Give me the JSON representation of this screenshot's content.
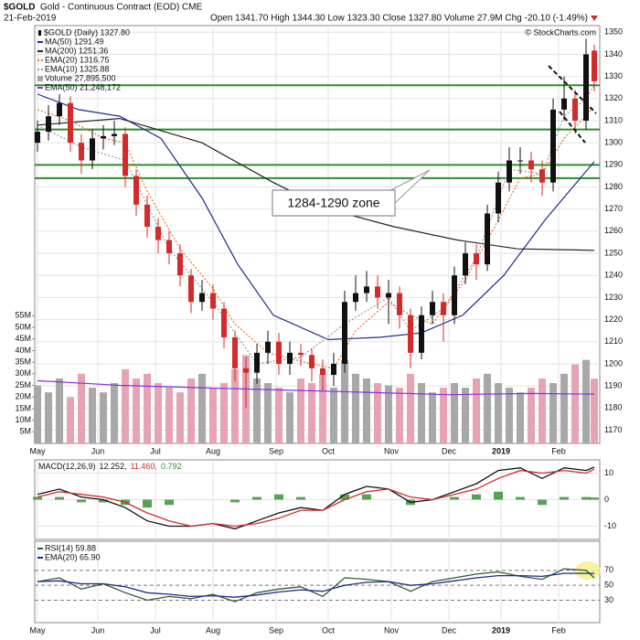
{
  "header": {
    "symbol": "$GOLD",
    "description": "Gold - Continuous Contract (EOD) CME",
    "date": "21-Feb-2019",
    "quote": "Open 1341.70  High 1344.30  Low 1323.30  Close 1327.80  Volume 27.9M  Chg -20.10 (-1.49%)",
    "watermark": "© StockCharts.com"
  },
  "chart_data": [
    {
      "type": "candlestick",
      "name": "$GOLD (Daily) 1327.80",
      "annotation": "1284-1290 zone",
      "x": [
        0,
        4,
        8,
        12,
        16,
        20,
        24,
        28,
        32,
        36,
        40,
        44,
        48,
        52,
        56,
        60,
        64,
        68,
        72,
        76,
        80,
        84,
        88,
        92,
        96,
        100,
        104,
        108,
        112,
        116,
        120,
        124,
        128,
        132,
        136,
        140,
        144,
        148,
        152,
        156,
        160,
        164,
        168,
        172,
        176,
        180,
        184,
        188,
        192,
        196,
        200,
        203
      ],
      "open": [
        1300,
        1305,
        1312,
        1318,
        1300,
        1292,
        1302,
        1303,
        1304,
        1285,
        1272,
        1262,
        1256,
        1250,
        1240,
        1228,
        1232,
        1225,
        1212,
        1198,
        1196,
        1205,
        1210,
        1200,
        1205,
        1204,
        1198,
        1195,
        1200,
        1228,
        1232,
        1235,
        1230,
        1232,
        1222,
        1205,
        1222,
        1228,
        1222,
        1240,
        1250,
        1245,
        1268,
        1282,
        1292,
        1292,
        1288,
        1282,
        1315,
        1320,
        1310,
        1341.7
      ],
      "high": [
        1310,
        1317,
        1322,
        1321,
        1304,
        1306,
        1308,
        1310,
        1307,
        1288,
        1276,
        1266,
        1260,
        1254,
        1243,
        1238,
        1236,
        1228,
        1215,
        1203,
        1209,
        1215,
        1214,
        1210,
        1209,
        1207,
        1202,
        1205,
        1233,
        1240,
        1242,
        1240,
        1238,
        1235,
        1225,
        1226,
        1233,
        1232,
        1244,
        1255,
        1254,
        1272,
        1287,
        1298,
        1298,
        1296,
        1292,
        1320,
        1330,
        1324,
        1347,
        1344.3
      ],
      "low": [
        1296,
        1301,
        1308,
        1296,
        1286,
        1288,
        1297,
        1299,
        1280,
        1267,
        1257,
        1250,
        1245,
        1235,
        1223,
        1224,
        1220,
        1207,
        1192,
        1180,
        1191,
        1200,
        1195,
        1195,
        1199,
        1192,
        1188,
        1190,
        1196,
        1224,
        1228,
        1225,
        1218,
        1216,
        1198,
        1202,
        1218,
        1210,
        1218,
        1236,
        1238,
        1242,
        1264,
        1278,
        1286,
        1282,
        1276,
        1278,
        1310,
        1304,
        1306,
        1323.3
      ],
      "close": [
        1305,
        1312,
        1318,
        1300,
        1292,
        1302,
        1303,
        1304,
        1285,
        1272,
        1262,
        1256,
        1250,
        1240,
        1228,
        1232,
        1225,
        1212,
        1198,
        1196,
        1205,
        1210,
        1200,
        1205,
        1204,
        1198,
        1195,
        1200,
        1228,
        1232,
        1235,
        1230,
        1232,
        1222,
        1205,
        1222,
        1228,
        1222,
        1240,
        1250,
        1245,
        1268,
        1282,
        1292,
        1292,
        1288,
        1282,
        1315,
        1320,
        1310,
        1340,
        1327.8
      ],
      "up_color": "#111111",
      "down_color": "#d42a2a",
      "xlim": [
        -1,
        205
      ],
      "xticks": [
        {
          "value": 0,
          "label": "May"
        },
        {
          "value": 22,
          "label": "Jun"
        },
        {
          "value": 43,
          "label": "Jul"
        },
        {
          "value": 64,
          "label": "Aug"
        },
        {
          "value": 87,
          "label": "Sep"
        },
        {
          "value": 106,
          "label": "Oct"
        },
        {
          "value": 129,
          "label": "Nov"
        },
        {
          "value": 150,
          "label": "Dec"
        },
        {
          "value": 169,
          "label": "2019"
        },
        {
          "value": 190,
          "label": "Feb"
        }
      ],
      "ylim": [
        1164,
        1353
      ],
      "yticks": [
        1170,
        1180,
        1190,
        1200,
        1210,
        1220,
        1230,
        1240,
        1250,
        1260,
        1270,
        1280,
        1290,
        1300,
        1310,
        1320,
        1330,
        1340,
        1350
      ],
      "grid": true,
      "series": [
        {
          "name": "MA(50) 1291.49",
          "color": "#1f2a8c",
          "style": "solid",
          "x": [
            0,
            15,
            30,
            45,
            60,
            73,
            86,
            106,
            125,
            140,
            155,
            170,
            185,
            203
          ],
          "values": [
            1322,
            1315,
            1312,
            1302,
            1275,
            1245,
            1222,
            1211,
            1212,
            1214,
            1222,
            1240,
            1265,
            1291.49
          ]
        },
        {
          "name": "MA(200) 1251.36",
          "color": "#222222",
          "style": "solid",
          "x": [
            0,
            30,
            60,
            86,
            106,
            130,
            153,
            175,
            203
          ],
          "values": [
            1308,
            1311,
            1300,
            1282,
            1270,
            1262,
            1256,
            1252,
            1251.36
          ]
        },
        {
          "name": "EMA(20) 1316.75",
          "color": "#f07020",
          "style": "dotted",
          "x": [
            0,
            12,
            24,
            32,
            40,
            52,
            64,
            72,
            84,
            100,
            108,
            116,
            128,
            136,
            144,
            156,
            168,
            176,
            184,
            192,
            200,
            203
          ],
          "values": [
            1315,
            1310,
            1302,
            1300,
            1278,
            1252,
            1234,
            1218,
            1205,
            1200,
            1198,
            1215,
            1228,
            1222,
            1218,
            1238,
            1265,
            1284,
            1286,
            1302,
            1312,
            1316.75
          ]
        },
        {
          "name": "EMA(10) 1325.88",
          "color": "#999999",
          "style": "dotted",
          "x": [
            0,
            16,
            32,
            48,
            64,
            80,
            96,
            112,
            128,
            136,
            148,
            160,
            172,
            184,
            192,
            200,
            203
          ],
          "values": [
            1308,
            1298,
            1292,
            1252,
            1228,
            1200,
            1203,
            1218,
            1230,
            1215,
            1225,
            1248,
            1288,
            1286,
            1312,
            1320,
            1325.88
          ]
        }
      ],
      "hlines": {
        "color": "#2e8b2e",
        "values": [
          1326,
          1306,
          1290,
          1284
        ]
      },
      "volume": {
        "name": "Volume 27,895,500",
        "up_color": "#a8a8a8",
        "down_color": "#e6a3b4",
        "values": [
          25,
          22,
          28,
          20,
          30,
          24,
          22,
          26,
          32,
          28,
          30,
          26,
          24,
          22,
          28,
          30,
          24,
          26,
          32,
          38,
          28,
          26,
          24,
          22,
          28,
          26,
          30,
          24,
          36,
          30,
          28,
          26,
          25,
          24,
          30,
          26,
          22,
          24,
          26,
          24,
          28,
          30,
          26,
          24,
          22,
          24,
          28,
          26,
          30,
          34,
          36,
          27.9
        ],
        "ylim": [
          0,
          180
        ],
        "yticks": [
          {
            "value": 5,
            "label": "5M"
          },
          {
            "value": 10,
            "label": "10M"
          },
          {
            "value": 15,
            "label": "15M"
          },
          {
            "value": 20,
            "label": "20M"
          },
          {
            "value": 25,
            "label": "25M"
          },
          {
            "value": 30,
            "label": "30M"
          },
          {
            "value": 35,
            "label": "35M"
          },
          {
            "value": 40,
            "label": "40M"
          },
          {
            "value": 45,
            "label": "45M"
          },
          {
            "value": 50,
            "label": "50M"
          },
          {
            "value": 55,
            "label": "55M"
          }
        ],
        "average": {
          "name": "EMA(50) 21,248,172",
          "color": "#8a2be2",
          "x": [
            0,
            30,
            60,
            90,
            120,
            150,
            180,
            203
          ],
          "values": [
            27,
            25,
            24,
            23,
            22,
            21,
            21.5,
            21.248172
          ]
        }
      }
    },
    {
      "type": "macd",
      "label": "MACD(12,26,9)",
      "x": [
        0,
        8,
        16,
        24,
        32,
        40,
        48,
        56,
        64,
        72,
        80,
        88,
        96,
        104,
        112,
        120,
        128,
        136,
        144,
        152,
        160,
        168,
        176,
        184,
        192,
        200,
        203
      ],
      "xlim": [
        -1,
        205
      ],
      "xticks": [
        {
          "value": 0,
          "label": "May"
        },
        {
          "value": 22,
          "label": "Jun"
        },
        {
          "value": 43,
          "label": "Jul"
        },
        {
          "value": 64,
          "label": "Aug"
        },
        {
          "value": 87,
          "label": "Sep"
        },
        {
          "value": 106,
          "label": "Oct"
        },
        {
          "value": 129,
          "label": "Nov"
        },
        {
          "value": 150,
          "label": "Dec"
        },
        {
          "value": 169,
          "label": "2019"
        },
        {
          "value": 190,
          "label": "Feb"
        }
      ],
      "ylim": [
        -15,
        15
      ],
      "yticks": [
        -10,
        0,
        10
      ],
      "grid": true,
      "series": [
        {
          "name": "12.252,",
          "color": "#111111",
          "style": "line",
          "values": [
            2,
            4,
            1,
            0,
            -3,
            -8,
            -10,
            -10,
            -9,
            -11,
            -8,
            -5,
            -3,
            -4,
            2,
            5,
            4,
            -1,
            0,
            3,
            6,
            11,
            12,
            8,
            12,
            11,
            12.252
          ]
        },
        {
          "name": "11.460,",
          "color": "#d42a2a",
          "style": "line",
          "values": [
            1,
            3,
            2,
            1,
            -1,
            -5,
            -8,
            -10,
            -9,
            -10,
            -9,
            -7,
            -4,
            -4,
            0,
            3,
            4,
            1,
            0,
            2,
            4,
            8,
            11,
            10,
            11,
            10,
            11.46
          ]
        },
        {
          "name": "0.792",
          "color": "#2e8b2e",
          "style": "histogram",
          "values": [
            1,
            1,
            -1,
            -1,
            -2,
            -3,
            -2,
            0,
            0,
            -1,
            1,
            2,
            1,
            0,
            2,
            2,
            0,
            -2,
            0,
            1,
            2,
            3,
            1,
            -2,
            1,
            1,
            0.792
          ]
        }
      ]
    },
    {
      "type": "rsi",
      "x": [
        0,
        8,
        16,
        24,
        32,
        40,
        48,
        56,
        64,
        72,
        80,
        88,
        96,
        104,
        112,
        120,
        128,
        136,
        144,
        152,
        160,
        168,
        176,
        184,
        192,
        200,
        203
      ],
      "xlim": [
        -1,
        205
      ],
      "xticks": [
        {
          "value": 0,
          "label": "May"
        },
        {
          "value": 22,
          "label": "Jun"
        },
        {
          "value": 43,
          "label": "Jul"
        },
        {
          "value": 64,
          "label": "Aug"
        },
        {
          "value": 87,
          "label": "Sep"
        },
        {
          "value": 106,
          "label": "Oct"
        },
        {
          "value": 129,
          "label": "Nov"
        },
        {
          "value": 150,
          "label": "Dec"
        },
        {
          "value": 169,
          "label": "2019"
        },
        {
          "value": 190,
          "label": "Feb"
        }
      ],
      "ylim": [
        0,
        109
      ],
      "yticks": [
        30,
        50,
        70
      ],
      "grid": true,
      "series": [
        {
          "name": "RSI(14) 59.88",
          "color": "#2f5f2f",
          "style": "line",
          "values": [
            55,
            60,
            45,
            52,
            40,
            30,
            35,
            32,
            38,
            28,
            40,
            45,
            48,
            35,
            60,
            58,
            55,
            42,
            55,
            60,
            65,
            68,
            62,
            58,
            72,
            70,
            59.88
          ]
        },
        {
          "name": "EMA(20) 65.90",
          "color": "#1f2a8c",
          "style": "line",
          "values": [
            55,
            56,
            52,
            52,
            48,
            40,
            38,
            35,
            36,
            34,
            37,
            41,
            44,
            42,
            50,
            54,
            55,
            50,
            52,
            56,
            60,
            63,
            63,
            62,
            66,
            66,
            65.9
          ]
        }
      ]
    }
  ]
}
